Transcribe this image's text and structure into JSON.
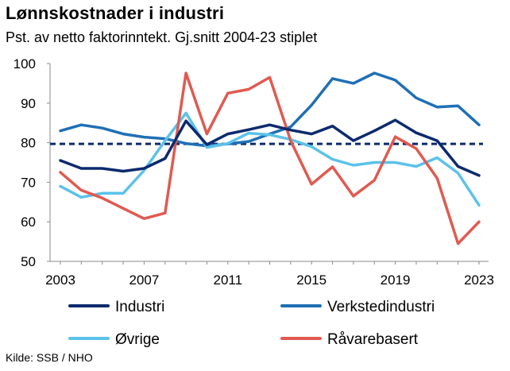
{
  "title": "Lønnskostnader i industri",
  "subtitle": "Pst. av netto faktorinntekt. Gj.snitt 2004-23 stiplet",
  "source": "Kilde: SSB / NHO",
  "chart_data": {
    "type": "line",
    "x": [
      2003,
      2004,
      2005,
      2006,
      2007,
      2008,
      2009,
      2010,
      2011,
      2012,
      2013,
      2014,
      2015,
      2016,
      2017,
      2018,
      2019,
      2020,
      2021,
      2022,
      2023
    ],
    "xticks": [
      2003,
      2007,
      2011,
      2015,
      2019,
      2023
    ],
    "yticks": [
      50,
      60,
      70,
      80,
      90,
      100
    ],
    "ylim": [
      50,
      100
    ],
    "xlim": [
      2003,
      2023
    ],
    "series": [
      {
        "name": "Industri",
        "color": "#0d2a6e",
        "values": [
          75.5,
          73.5,
          73.5,
          72.8,
          73.5,
          76.0,
          85.5,
          79.5,
          82.2,
          83.3,
          84.5,
          83.2,
          82.2,
          84.2,
          80.5,
          83.0,
          85.7,
          82.5,
          80.5,
          74.0,
          71.7
        ]
      },
      {
        "name": "Verkstedindustri",
        "color": "#1f6fb5",
        "values": [
          83.0,
          84.5,
          83.7,
          82.2,
          81.4,
          81.0,
          79.8,
          79.2,
          79.7,
          80.3,
          82.2,
          84.0,
          89.5,
          96.2,
          95.0,
          97.6,
          95.8,
          91.3,
          89.0,
          89.3,
          84.5
        ]
      },
      {
        "name": "Øvrige",
        "color": "#5bc2ea",
        "values": [
          69.0,
          66.2,
          67.2,
          67.2,
          73.0,
          80.5,
          87.5,
          78.8,
          79.8,
          82.4,
          82.0,
          80.8,
          79.0,
          75.8,
          74.3,
          75.0,
          75.0,
          74.0,
          76.2,
          72.3,
          64.2
        ]
      },
      {
        "name": "Råvarebasert",
        "color": "#e05a50",
        "values": [
          72.5,
          68.0,
          66.0,
          63.4,
          60.8,
          62.2,
          97.6,
          82.2,
          92.5,
          93.5,
          96.5,
          80.5,
          69.5,
          73.9,
          66.5,
          70.5,
          81.5,
          78.5,
          71.0,
          54.5,
          60.0
        ]
      }
    ],
    "average_line": {
      "value": 79.7,
      "color": "#0d2a6e",
      "style": "dashed"
    },
    "legend": {
      "placement": "bottom"
    }
  }
}
